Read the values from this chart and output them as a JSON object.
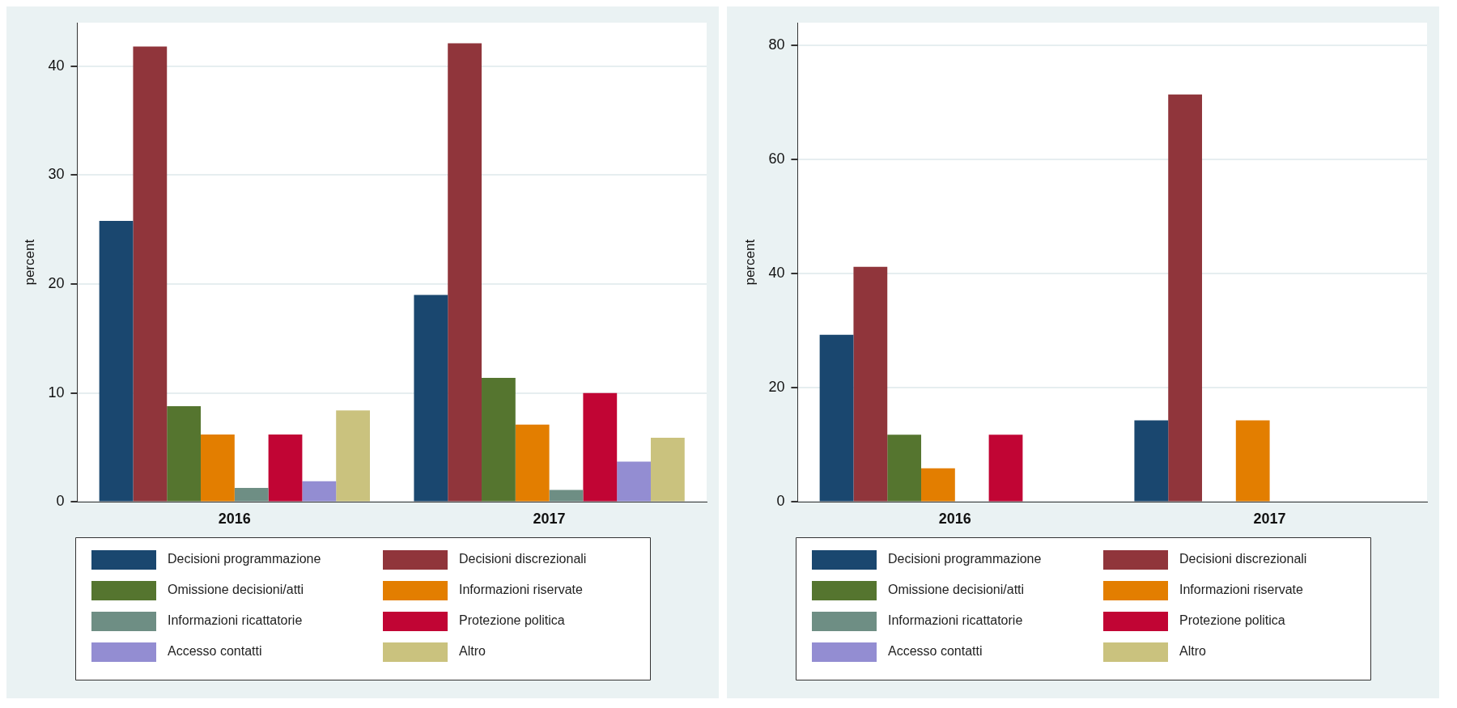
{
  "chart_data": [
    {
      "type": "bar",
      "ylabel": "percent",
      "categories": [
        "2016",
        "2017"
      ],
      "ylim": [
        0,
        44
      ],
      "yticks": [
        0,
        10,
        20,
        30,
        40
      ],
      "grid": "y",
      "legend": "bottom",
      "series": [
        {
          "name": "Decisioni programmazione",
          "color": "#1a476f",
          "values": [
            25.8,
            19.0
          ]
        },
        {
          "name": "Decisioni discrezionali",
          "color": "#90353b",
          "values": [
            41.8,
            42.1
          ]
        },
        {
          "name": "Omissione decisioni/atti",
          "color": "#55752f",
          "values": [
            8.8,
            11.4
          ]
        },
        {
          "name": "Informazioni riservate",
          "color": "#e37e00",
          "values": [
            6.2,
            7.1
          ]
        },
        {
          "name": "Informazioni ricattatorie",
          "color": "#6e8e84",
          "values": [
            1.3,
            1.1
          ]
        },
        {
          "name": "Protezione politica",
          "color": "#c10534",
          "values": [
            6.2,
            10.0
          ]
        },
        {
          "name": "Accesso contatti",
          "color": "#938dd2",
          "values": [
            1.9,
            3.7
          ]
        },
        {
          "name": "Altro",
          "color": "#cac27e",
          "values": [
            8.4,
            5.9
          ]
        }
      ]
    },
    {
      "type": "bar",
      "ylabel": "percent",
      "categories": [
        "2016",
        "2017"
      ],
      "ylim": [
        0,
        84
      ],
      "yticks": [
        0,
        20,
        40,
        60,
        80
      ],
      "grid": "y",
      "legend": "bottom",
      "series": [
        {
          "name": "Decisioni programmazione",
          "color": "#1a476f",
          "values": [
            29.3,
            14.3
          ]
        },
        {
          "name": "Decisioni discrezionali",
          "color": "#90353b",
          "values": [
            41.2,
            71.4
          ]
        },
        {
          "name": "Omissione decisioni/atti",
          "color": "#55752f",
          "values": [
            11.8,
            0
          ]
        },
        {
          "name": "Informazioni riservate",
          "color": "#e37e00",
          "values": [
            5.9,
            14.3
          ]
        },
        {
          "name": "Informazioni ricattatorie",
          "color": "#6e8e84",
          "values": [
            0,
            0
          ]
        },
        {
          "name": "Protezione politica",
          "color": "#c10534",
          "values": [
            11.8,
            0
          ]
        },
        {
          "name": "Accesso contatti",
          "color": "#938dd2",
          "values": [
            0,
            0
          ]
        },
        {
          "name": "Altro",
          "color": "#cac27e",
          "values": [
            0,
            0
          ]
        }
      ]
    }
  ]
}
